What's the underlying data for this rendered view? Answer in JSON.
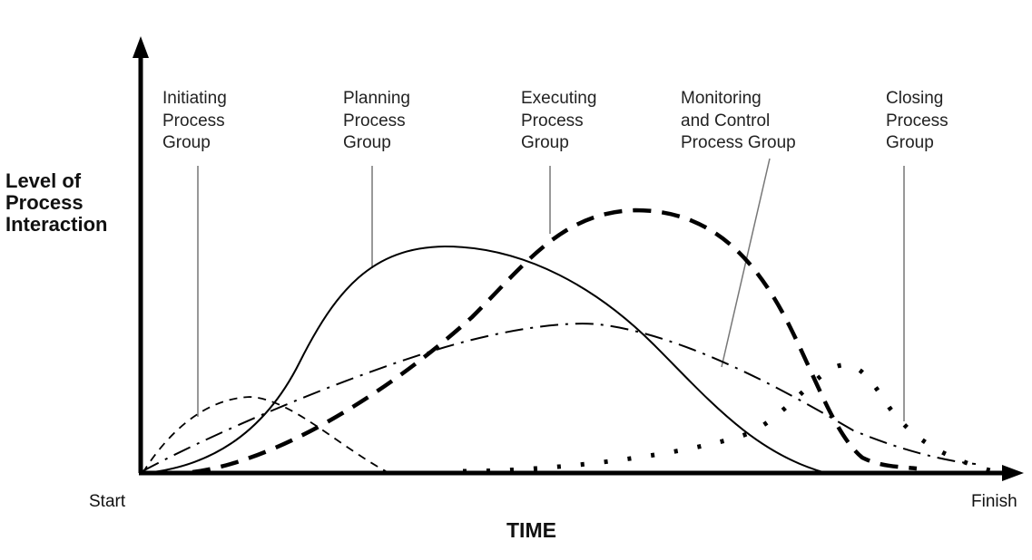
{
  "y_axis_label": [
    "Level of",
    "Process",
    "Interaction"
  ],
  "x_axis_label": "TIME",
  "x_start": "Start",
  "x_finish": "Finish",
  "groups": [
    {
      "lines": [
        "Initiating",
        "Process",
        "Group"
      ],
      "line_style": "short-dashed"
    },
    {
      "lines": [
        "Planning",
        "Process",
        "Group"
      ],
      "line_style": "solid"
    },
    {
      "lines": [
        "Executing",
        "Process",
        "Group"
      ],
      "line_style": "thick-dashed"
    },
    {
      "lines": [
        "Monitoring",
        "and Control",
        "Process Group"
      ],
      "line_style": "dash-dot"
    },
    {
      "lines": [
        "Closing",
        "Process",
        "Group"
      ],
      "line_style": "dotted"
    }
  ],
  "colors": {
    "curves": "#000000",
    "leaders": "#777777"
  }
}
